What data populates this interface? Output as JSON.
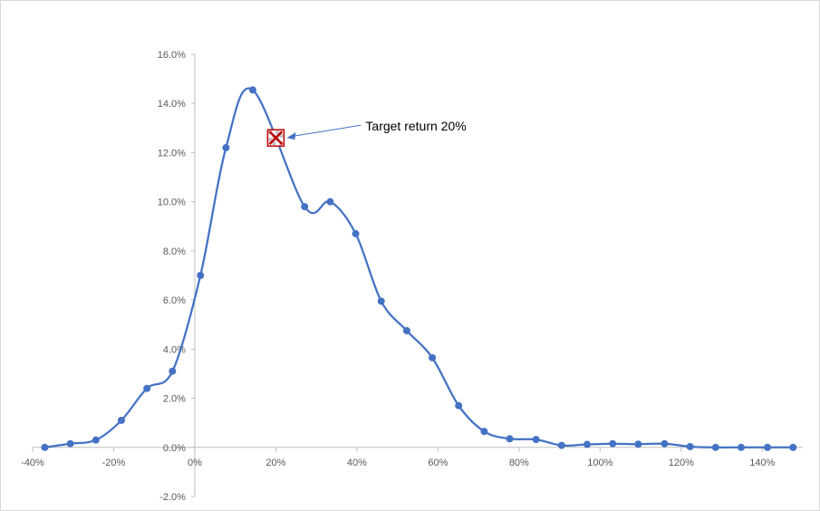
{
  "chart_data": {
    "type": "line",
    "smooth": true,
    "xlim": [
      -40,
      150
    ],
    "ylim": [
      -2,
      16
    ],
    "x_ticks": [
      -40,
      -20,
      0,
      20,
      40,
      60,
      80,
      100,
      120,
      140
    ],
    "x_tick_labels": [
      "-40%",
      "-20%",
      "0%",
      "20%",
      "40%",
      "60%",
      "80%",
      "100%",
      "120%",
      "140%"
    ],
    "y_ticks": [
      -2,
      0,
      2,
      4,
      6,
      8,
      10,
      12,
      14,
      16
    ],
    "y_tick_labels": [
      "-2.0%",
      "0.0%",
      "2.0%",
      "4.0%",
      "6.0%",
      "8.0%",
      "10.0%",
      "12.0%",
      "14.0%",
      "16.0%"
    ],
    "grid": false,
    "legend": "none",
    "series": [
      {
        "color": "#4472c4",
        "x": [
          -37,
          -30.7,
          -24.4,
          -18.1,
          -11.8,
          -5.5,
          1.4,
          7.7,
          14.3,
          27.1,
          33.4,
          39.7,
          46,
          52.3,
          58.6,
          65.1,
          71.4,
          77.7,
          84.2,
          90.5,
          96.8,
          103.1,
          109.4,
          115.9,
          122.2,
          128.5,
          134.8,
          141.3,
          147.6
        ],
        "y": [
          0,
          0.15,
          0.3,
          1.1,
          2.4,
          3.1,
          7.0,
          12.2,
          14.55,
          9.8,
          10.0,
          8.7,
          5.95,
          4.75,
          3.65,
          1.7,
          0.65,
          0.35,
          0.32,
          0.08,
          0.12,
          0.15,
          0.13,
          0.15,
          0.03,
          0,
          0,
          0,
          0
        ]
      }
    ],
    "annotations": [
      {
        "text": "Target return 20%",
        "marker": "x-box",
        "x": 20,
        "y": 12.6,
        "marker_color": "#c00000"
      }
    ]
  }
}
